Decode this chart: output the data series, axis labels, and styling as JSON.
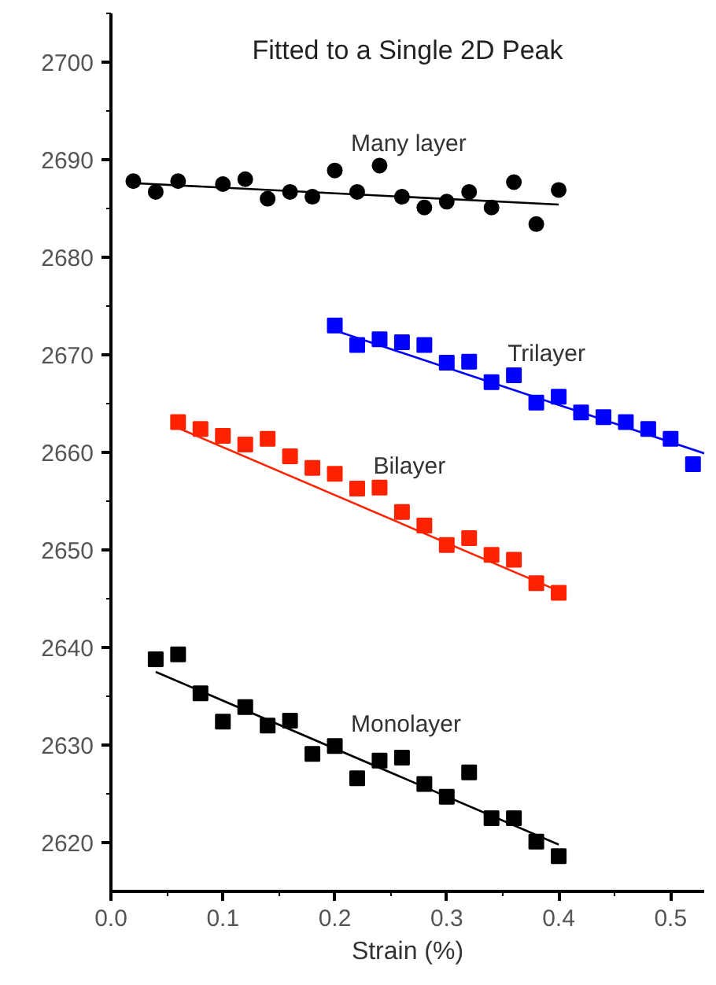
{
  "chart_data": {
    "type": "scatter",
    "title": "Fitted to a Single 2D Peak",
    "xlabel": "Strain (%)",
    "xlim": [
      0,
      0.53
    ],
    "xticks": [
      {
        "value": 0,
        "label": "0.0"
      },
      0.1,
      0.2,
      0.3,
      0.4,
      0.5
    ],
    "ylim": [
      2615,
      2705
    ],
    "yticks": [
      2620,
      2630,
      2640,
      2650,
      2660,
      2670,
      2680,
      2690,
      2700
    ],
    "grid": false,
    "legend": false,
    "series": [
      {
        "name": "Many layer",
        "marker": "circle",
        "color": "#000000",
        "x": [
          0.02,
          0.04,
          0.06,
          0.1,
          0.12,
          0.14,
          0.16,
          0.18,
          0.2,
          0.22,
          0.24,
          0.26,
          0.28,
          0.3,
          0.32,
          0.34,
          0.36,
          0.38,
          0.4
        ],
        "values": [
          2687.8,
          2686.7,
          2687.8,
          2687.5,
          2688,
          2686,
          2686.7,
          2686.2,
          2688.9,
          2686.7,
          2689.4,
          2686.2,
          2685.1,
          2685.7,
          2686.7,
          2685.1,
          2687.7,
          2683.4,
          2686.9
        ]
      },
      {
        "type": "line",
        "color": "#000000",
        "x": [
          0.02,
          0.4
        ],
        "values": [
          2687.6,
          2685.4
        ]
      },
      {
        "name": "Trilayer",
        "marker": "square",
        "color": "#0000ff",
        "x": [
          0.2,
          0.22,
          0.24,
          0.26,
          0.28,
          0.3,
          0.32,
          0.34,
          0.36,
          0.38,
          0.4,
          0.42,
          0.44,
          0.46,
          0.48,
          0.5,
          0.52
        ],
        "values": [
          2673,
          2671,
          2671.6,
          2671.3,
          2671,
          2669.2,
          2669.3,
          2667.2,
          2667.9,
          2665.1,
          2665.7,
          2664.1,
          2663.6,
          2663.1,
          2662.4,
          2661.4,
          2658.8
        ]
      },
      {
        "type": "line",
        "color": "#0000ff",
        "x": [
          0.2,
          0.53
        ],
        "values": [
          2672.5,
          2659.9
        ]
      },
      {
        "name": "Bilayer",
        "marker": "square",
        "color": "#ff2200",
        "x": [
          0.06,
          0.08,
          0.1,
          0.12,
          0.14,
          0.16,
          0.18,
          0.2,
          0.22,
          0.24,
          0.26,
          0.28,
          0.3,
          0.32,
          0.34,
          0.36,
          0.38,
          0.4
        ],
        "values": [
          2663.1,
          2662.4,
          2661.7,
          2660.8,
          2661.4,
          2659.6,
          2658.4,
          2657.8,
          2656.3,
          2656.4,
          2653.9,
          2652.5,
          2650.5,
          2651.2,
          2649.5,
          2649,
          2646.6,
          2645.6
        ]
      },
      {
        "type": "line",
        "color": "#ff2200",
        "x": [
          0.06,
          0.4
        ],
        "values": [
          2662.5,
          2645.8
        ]
      },
      {
        "name": "Monolayer",
        "marker": "square",
        "color": "#000000",
        "x": [
          0.04,
          0.06,
          0.08,
          0.1,
          0.12,
          0.14,
          0.16,
          0.18,
          0.2,
          0.22,
          0.24,
          0.26,
          0.28,
          0.3,
          0.32,
          0.34,
          0.36,
          0.38,
          0.4
        ],
        "values": [
          2638.8,
          2639.3,
          2635.3,
          2632.4,
          2633.9,
          2632,
          2632.5,
          2629.1,
          2629.9,
          2626.6,
          2628.4,
          2628.7,
          2626,
          2624.7,
          2627.2,
          2622.5,
          2622.5,
          2620.1,
          2618.6
        ]
      },
      {
        "type": "line",
        "color": "#000000",
        "x": [
          0.04,
          0.4
        ],
        "values": [
          2637.5,
          2619.8
        ]
      }
    ]
  }
}
